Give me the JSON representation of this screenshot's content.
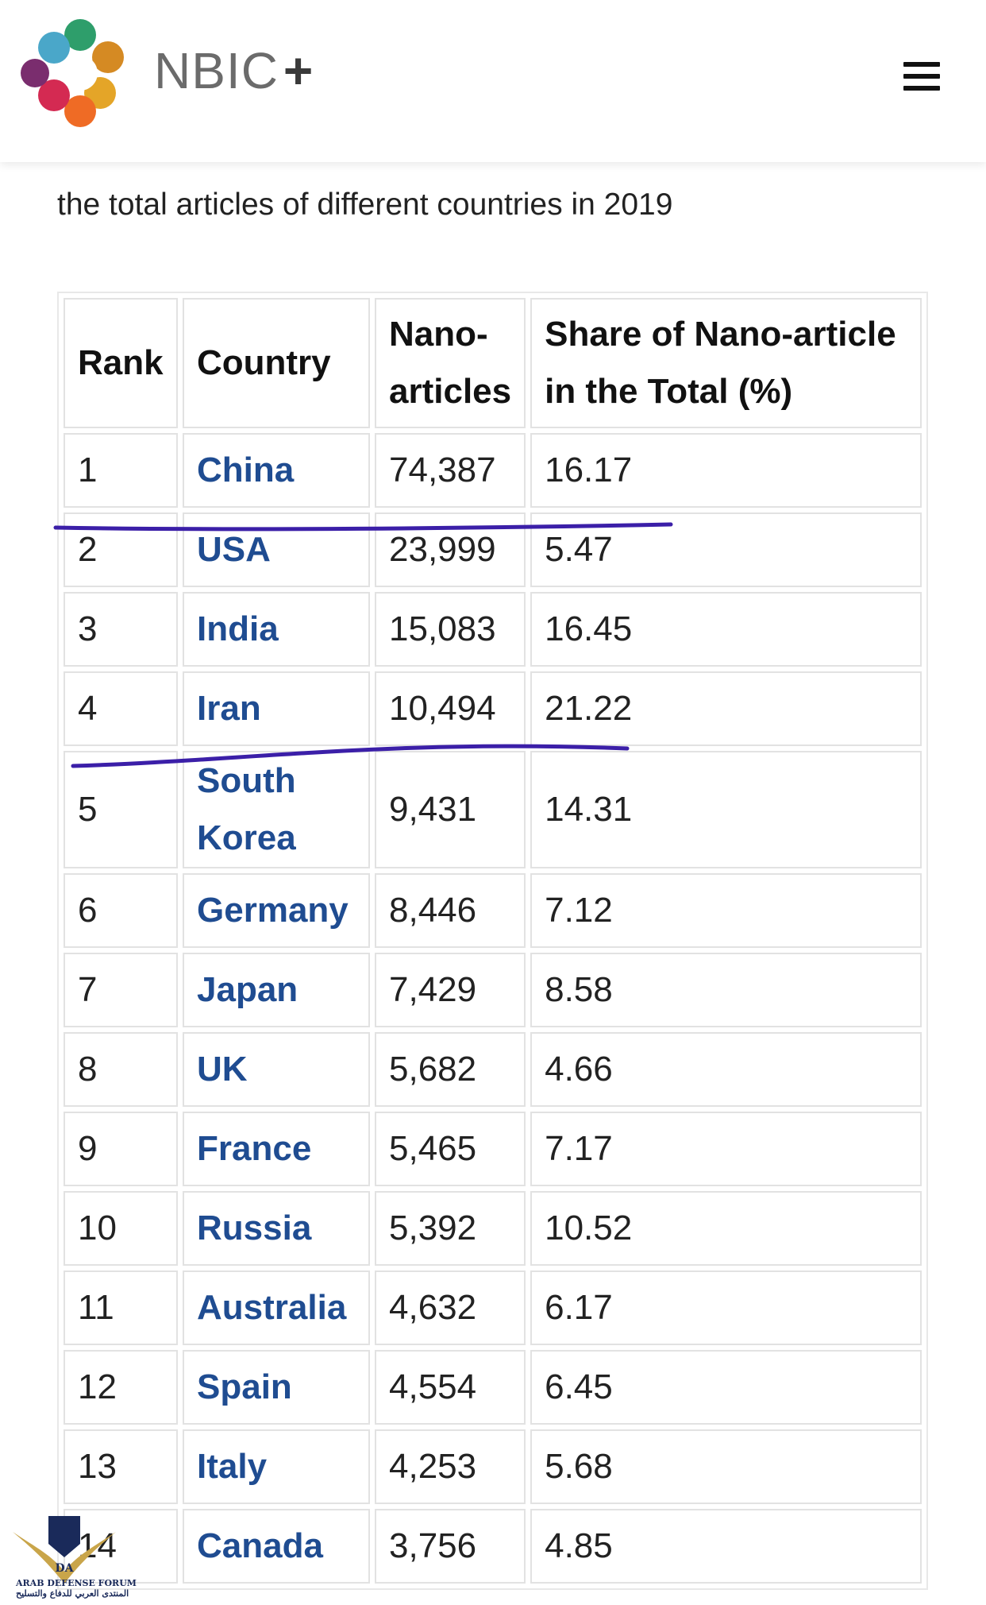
{
  "header": {
    "brand": "NBIC",
    "brand_plus": "+",
    "menu_icon": "hamburger-icon"
  },
  "subtitle": "the total articles of different countries in 2019",
  "table": {
    "headers": {
      "rank": "Rank",
      "country": "Country",
      "articles_line1": "Nano-",
      "articles_line2": "articles",
      "share_line1": "Share of Nano-article",
      "share_line2": "in the Total (%)"
    },
    "rows": [
      {
        "rank": "1",
        "country": "China",
        "articles": "74,387",
        "share": "16.17"
      },
      {
        "rank": "2",
        "country": "USA",
        "articles": "23,999",
        "share": "5.47"
      },
      {
        "rank": "3",
        "country": "India",
        "articles": "15,083",
        "share": "16.45"
      },
      {
        "rank": "4",
        "country": "Iran",
        "articles": "10,494",
        "share": "21.22"
      },
      {
        "rank": "5",
        "country": "South Korea",
        "country_line1": "South",
        "country_line2": "Korea",
        "articles": "9,431",
        "share": "14.31"
      },
      {
        "rank": "6",
        "country": "Germany",
        "articles": "8,446",
        "share": "7.12"
      },
      {
        "rank": "7",
        "country": "Japan",
        "articles": "7,429",
        "share": "8.58"
      },
      {
        "rank": "8",
        "country": "UK",
        "articles": "5,682",
        "share": "4.66"
      },
      {
        "rank": "9",
        "country": "France",
        "articles": "5,465",
        "share": "7.17"
      },
      {
        "rank": "10",
        "country": "Russia",
        "articles": "5,392",
        "share": "10.52"
      },
      {
        "rank": "11",
        "country": "Australia",
        "articles": "4,632",
        "share": "6.17"
      },
      {
        "rank": "12",
        "country": "Spain",
        "articles": "4,554",
        "share": "6.45"
      },
      {
        "rank": "13",
        "country": "Italy",
        "articles": "4,253",
        "share": "5.68"
      },
      {
        "rank": "14",
        "country": "Canada",
        "articles": "3,756",
        "share": "4.85"
      }
    ]
  },
  "colors": {
    "link": "#1f4c91",
    "annotation": "#3b1fa8"
  },
  "watermark": {
    "line1": "ARAB DEFENSE FORUM",
    "line2": "المنتدى العربي للدفاع والتسليح"
  }
}
